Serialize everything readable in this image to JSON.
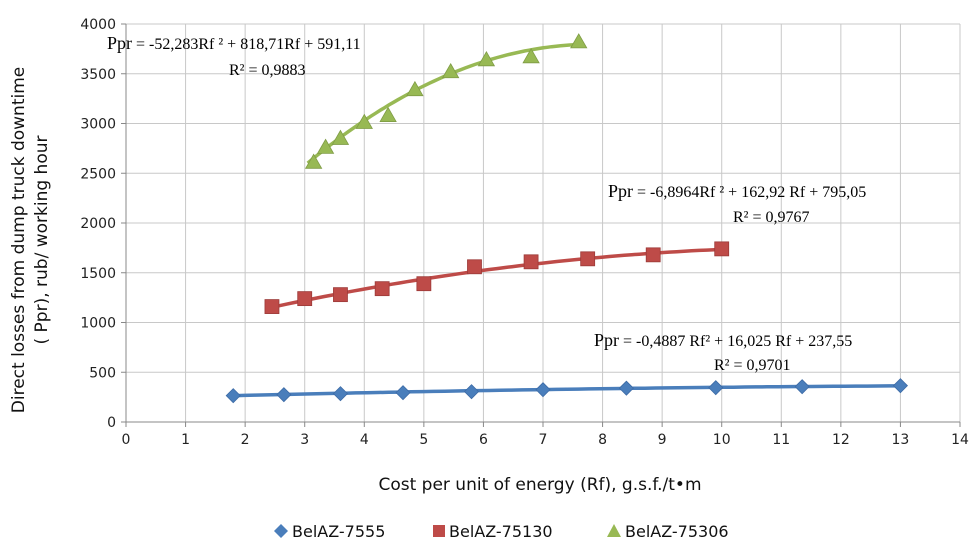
{
  "chart_data": {
    "type": "scatter",
    "xlabel": "Cost per unit of energy (Rf), g.s.f./t•m",
    "ylabel_line1": "Direct losses from dump truck downtime",
    "ylabel_line2": "( Ppr), rub/ working hour",
    "xlim": [
      0,
      14
    ],
    "ylim": [
      0,
      4000
    ],
    "x_ticks": [
      "0",
      "1",
      "2",
      "3",
      "4",
      "5",
      "6",
      "7",
      "8",
      "9",
      "10",
      "11",
      "12",
      "13",
      "14"
    ],
    "y_ticks": [
      "0",
      "500",
      "1000",
      "1500",
      "2000",
      "2500",
      "3000",
      "3500",
      "4000"
    ],
    "grid": true,
    "legend_position": "bottom",
    "series": [
      {
        "name": "BelAZ-7555",
        "color": "#4a7ebb",
        "marker": "diamond",
        "x": [
          1.8,
          2.65,
          3.6,
          4.65,
          5.8,
          7.0,
          8.4,
          9.9,
          11.35,
          13.0
        ],
        "y": [
          265,
          275,
          285,
          295,
          305,
          325,
          340,
          345,
          355,
          365
        ],
        "trend": {
          "a": -0.4887,
          "b": 16.025,
          "c": 237.55,
          "x_start": 1.8,
          "x_end": 13.0
        },
        "equation_prefix": "Ppr",
        "equation_body": " = -0,4887 Rf² + 16,025 Rf + 237,55",
        "r2": "R² = 0,9701"
      },
      {
        "name": "BelAZ-75130",
        "color": "#be4b48",
        "marker": "square",
        "x": [
          2.45,
          3.0,
          3.6,
          4.3,
          5.0,
          5.85,
          6.8,
          7.75,
          8.85,
          10.0
        ],
        "y": [
          1160,
          1240,
          1280,
          1340,
          1390,
          1560,
          1610,
          1640,
          1680,
          1740
        ],
        "trend": {
          "a": -6.8964,
          "b": 162.92,
          "c": 795.05,
          "x_start": 2.45,
          "x_end": 10.0
        },
        "equation_prefix": "Ppr",
        "equation_body": " = -6,8964Rf ² + 162,92 Rf + 795,05",
        "r2": "R² = 0,9767"
      },
      {
        "name": "BelAZ-75306",
        "color": "#98b954",
        "marker": "triangle",
        "x": [
          3.15,
          3.35,
          3.6,
          4.0,
          4.4,
          4.85,
          5.45,
          6.05,
          6.8,
          7.6
        ],
        "y": [
          2610,
          2760,
          2850,
          3010,
          3080,
          3340,
          3520,
          3640,
          3670,
          3820
        ],
        "trend": {
          "a": -52.283,
          "b": 818.71,
          "c": 591.11,
          "x_start": 3.05,
          "x_end": 7.6
        },
        "equation_prefix": "Ppr",
        "equation_body": " = -52,283Rf ² + 818,71Rf + 591,11",
        "r2": "R² = 0,9883"
      }
    ]
  }
}
